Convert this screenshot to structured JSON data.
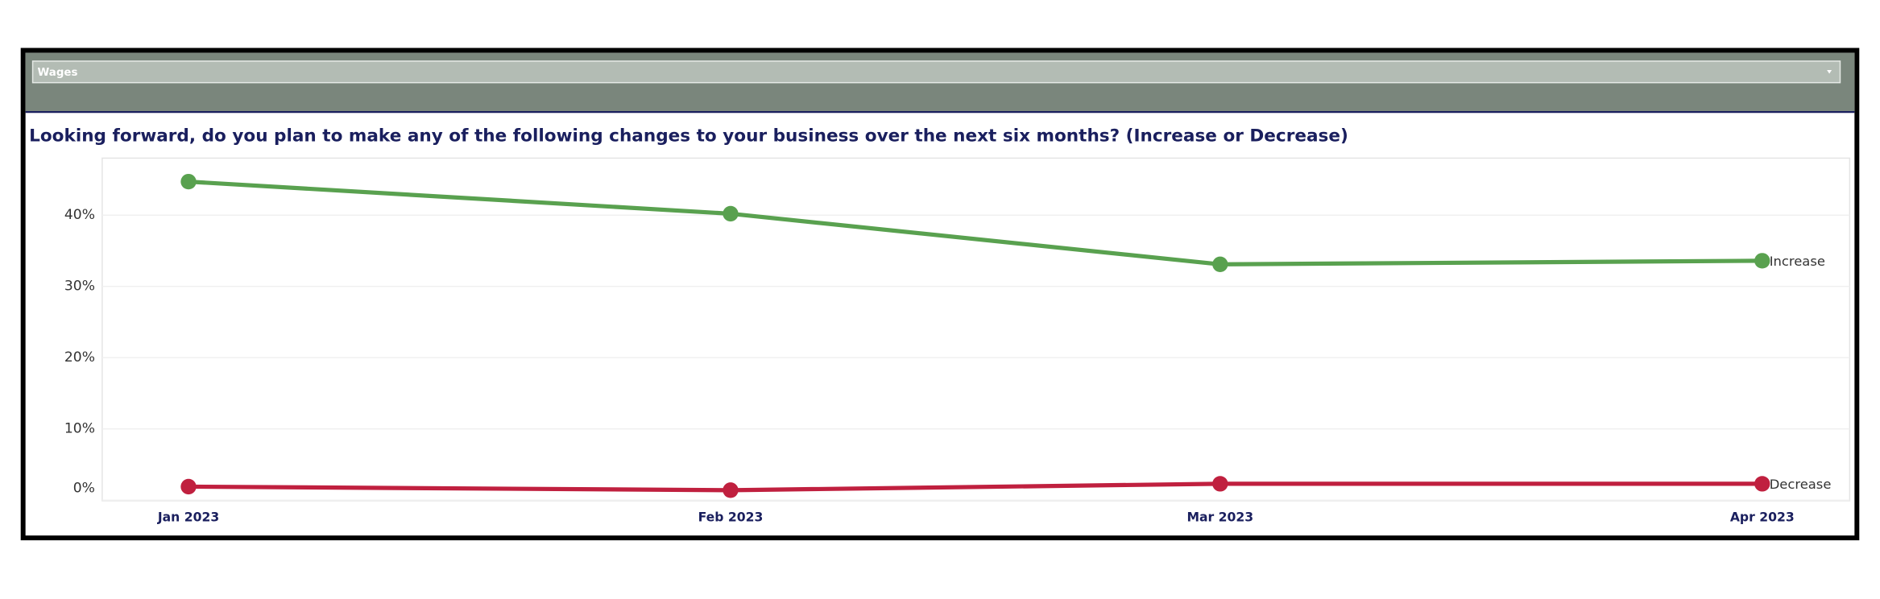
{
  "filter": {
    "label": "Wages"
  },
  "chart_data": {
    "type": "line",
    "title": "Looking forward, do you plan to make any of the following changes to your business over the next six months? (Increase or Decrease)",
    "categories": [
      "Jan 2023",
      "Feb 2023",
      "Mar 2023",
      "Apr 2023"
    ],
    "series": [
      {
        "name": "Increase",
        "color": "#59a14f",
        "values": [
          44.7,
          40.2,
          33.1,
          33.6
        ]
      },
      {
        "name": "Decrease",
        "color": "#c0203f",
        "values": [
          1.9,
          1.4,
          2.3,
          2.3
        ]
      }
    ],
    "ylim": [
      0,
      48
    ],
    "yticks": [
      {
        "value": 0,
        "label": "0%"
      },
      {
        "value": 10,
        "label": "10%"
      },
      {
        "value": 20,
        "label": "20%"
      },
      {
        "value": 30,
        "label": "30%"
      },
      {
        "value": 40,
        "label": "40%"
      }
    ],
    "grid": true
  }
}
